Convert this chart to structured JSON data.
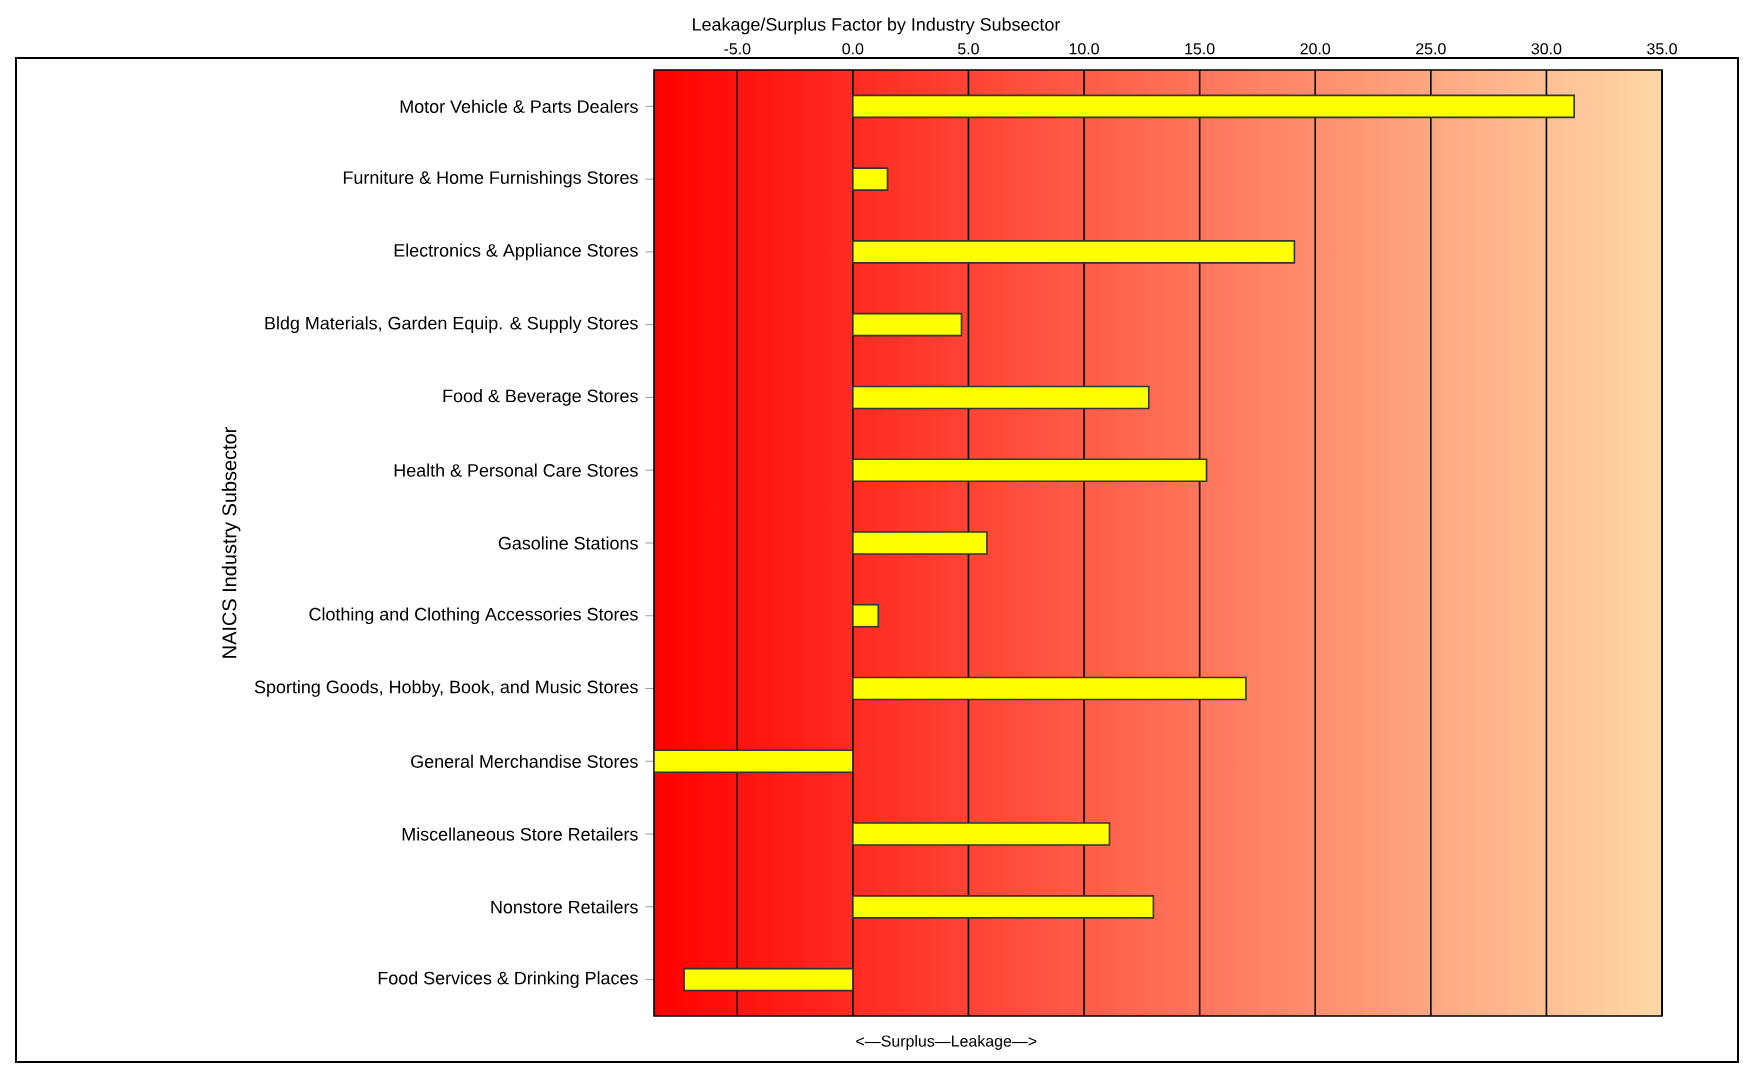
{
  "chart_data": {
    "type": "bar",
    "orientation": "horizontal",
    "title": "Leakage/Surplus Factor by Industry Subsector",
    "xlabel": "<—Surplus—Leakage—>",
    "ylabel": "NAICS Industry Subsector",
    "categories": [
      "Motor Vehicle & Parts Dealers",
      "Furniture & Home Furnishings Stores",
      "Electronics & Appliance Stores",
      "Bldg Materials, Garden Equip. & Supply Stores",
      "Food & Beverage Stores",
      "Health & Personal Care Stores",
      "Gasoline Stations",
      "Clothing and Clothing Accessories Stores",
      "Sporting Goods, Hobby, Book, and Music Stores",
      "General Merchandise Stores",
      "Miscellaneous Store Retailers",
      "Nonstore Retailers",
      "Food Services & Drinking Places"
    ],
    "values": [
      31.2,
      1.5,
      19.1,
      4.7,
      12.8,
      15.3,
      5.8,
      1.1,
      17.0,
      -8.6,
      11.1,
      13.0,
      -7.3
    ],
    "color": "#ffff00",
    "xlim": [
      -8.6,
      35
    ],
    "xticks": [
      {
        "value": -5,
        "label": "-5.0"
      },
      {
        "value": 0,
        "label": "0.0"
      },
      {
        "value": 5,
        "label": "5.0"
      },
      {
        "value": 10,
        "label": "10.0"
      },
      {
        "value": 15,
        "label": "15.0"
      },
      {
        "value": 20,
        "label": "20.0"
      },
      {
        "value": 25,
        "label": "25.0"
      },
      {
        "value": 30,
        "label": "30.0"
      },
      {
        "value": 35,
        "label": "35.0"
      }
    ],
    "grid": "x"
  }
}
